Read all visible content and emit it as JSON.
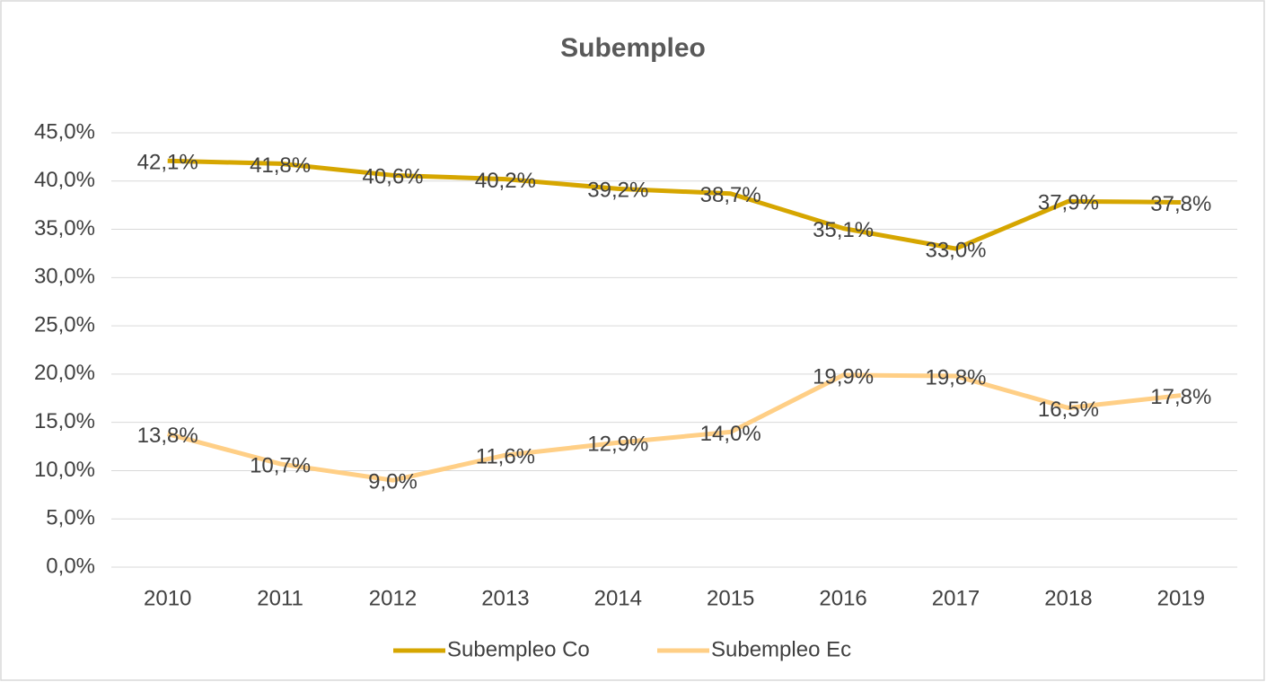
{
  "chart_data": {
    "type": "line",
    "title": "Subempleo",
    "categories": [
      "2010",
      "2011",
      "2012",
      "2013",
      "2014",
      "2015",
      "2016",
      "2017",
      "2018",
      "2019"
    ],
    "series": [
      {
        "name": "Subempleo Co",
        "color": "#d6a600",
        "values": [
          42.1,
          41.8,
          40.6,
          40.2,
          39.2,
          38.7,
          35.1,
          33.0,
          37.9,
          37.8
        ],
        "value_labels": [
          "42,1%",
          "41,8%",
          "40,6%",
          "40,2%",
          "39,2%",
          "38,7%",
          "35,1%",
          "33,0%",
          "37,9%",
          "37,8%"
        ]
      },
      {
        "name": "Subempleo Ec",
        "color": "#ffcf86",
        "values": [
          13.8,
          10.7,
          9.0,
          11.6,
          12.9,
          14.0,
          19.9,
          19.8,
          16.5,
          17.8
        ],
        "value_labels": [
          "13,8%",
          "10,7%",
          "9,0%",
          "11,6%",
          "12,9%",
          "14,0%",
          "19,9%",
          "19,8%",
          "16,5%",
          "17,8%"
        ]
      }
    ],
    "ylim": [
      0,
      45
    ],
    "yticks": [
      {
        "value": 0,
        "label": "0,0%"
      },
      {
        "value": 5,
        "label": "5,0%"
      },
      {
        "value": 10,
        "label": "10,0%"
      },
      {
        "value": 15,
        "label": "15,0%"
      },
      {
        "value": 20,
        "label": "20,0%"
      },
      {
        "value": 25,
        "label": "25,0%"
      },
      {
        "value": 30,
        "label": "30,0%"
      },
      {
        "value": 35,
        "label": "35,0%"
      },
      {
        "value": 40,
        "label": "40,0%"
      },
      {
        "value": 45,
        "label": "45,0%"
      }
    ],
    "grid": true,
    "legend": "bottom"
  }
}
